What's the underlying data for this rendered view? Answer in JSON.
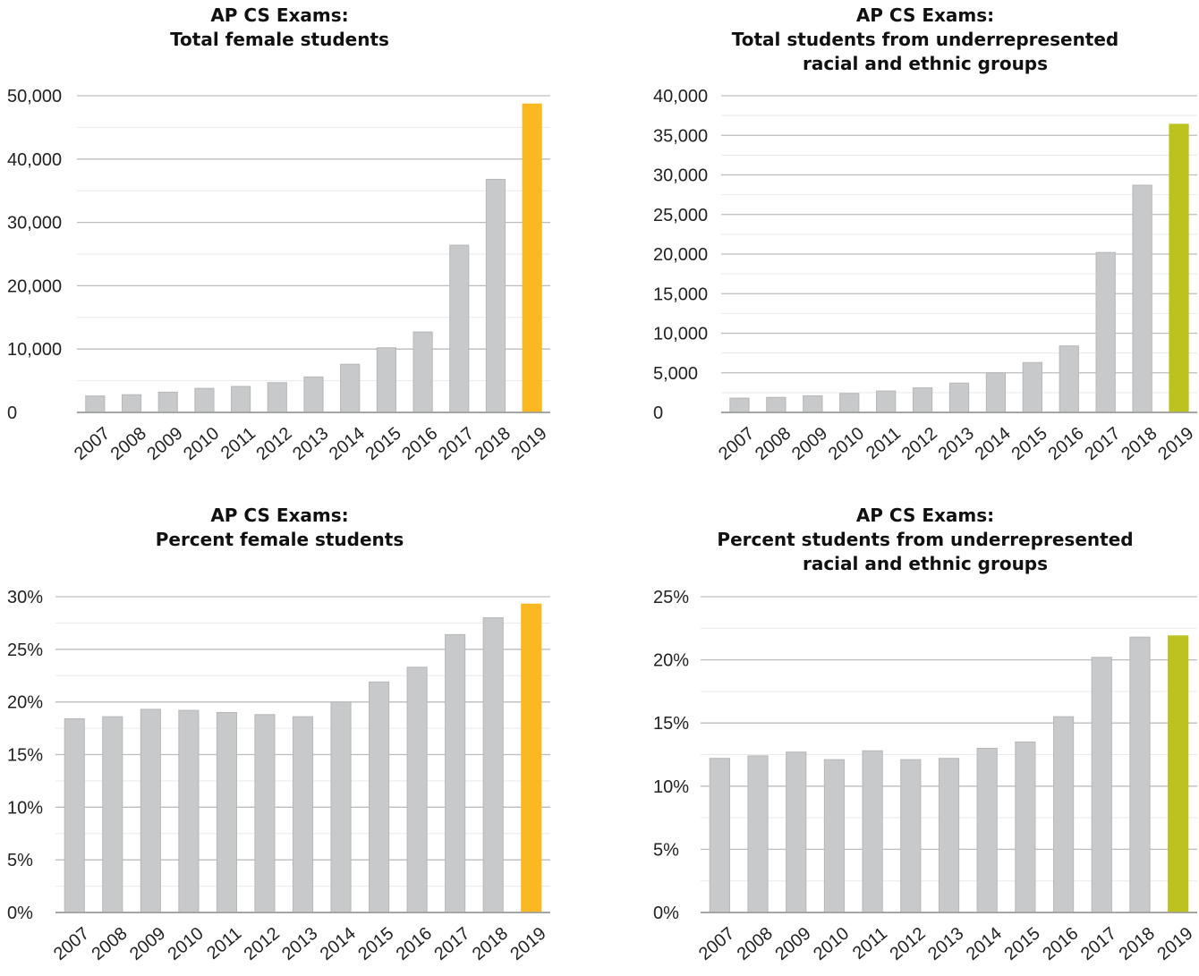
{
  "colors": {
    "bar": "#c7c9cb",
    "bar_stroke": "#b5b7b9",
    "female_highlight": "#fbb820",
    "urg_highlight": "#bcc31f",
    "grid": "#bdbdbd",
    "minor_grid": "#e9e9e9"
  },
  "chart_data": [
    {
      "type": "bar",
      "title_lines": [
        "AP CS Exams:",
        "Total female students"
      ],
      "categories": [
        "2007",
        "2008",
        "2009",
        "2010",
        "2011",
        "2012",
        "2013",
        "2014",
        "2015",
        "2016",
        "2017",
        "2018",
        "2019"
      ],
      "values": [
        2600,
        2800,
        3200,
        3800,
        4100,
        4700,
        5600,
        7600,
        10200,
        12700,
        26400,
        36800,
        48700
      ],
      "ylim": [
        0,
        50000
      ],
      "y_ticks": [
        0,
        10000,
        20000,
        30000,
        40000,
        50000
      ],
      "y_tick_labels": [
        "0",
        "10,000",
        "20,000",
        "30,000",
        "40,000",
        "50,000"
      ],
      "grid": true,
      "highlight_index": 12,
      "highlight_color": "female_highlight",
      "xlabel": "",
      "ylabel": ""
    },
    {
      "type": "bar",
      "title_lines": [
        "AP CS Exams:",
        "Total students from underrepresented",
        "racial and ethnic groups"
      ],
      "categories": [
        "2007",
        "2008",
        "2009",
        "2010",
        "2011",
        "2012",
        "2013",
        "2014",
        "2015",
        "2016",
        "2017",
        "2018",
        "2019"
      ],
      "values": [
        1800,
        1900,
        2100,
        2400,
        2700,
        3100,
        3700,
        5000,
        6300,
        8400,
        20200,
        28700,
        36400
      ],
      "ylim": [
        0,
        40000
      ],
      "y_ticks": [
        0,
        5000,
        10000,
        15000,
        20000,
        25000,
        30000,
        35000,
        40000
      ],
      "y_tick_labels": [
        "0",
        "5,000",
        "10,000",
        "15,000",
        "20,000",
        "25,000",
        "30,000",
        "35,000",
        "40,000"
      ],
      "grid": true,
      "highlight_index": 12,
      "highlight_color": "urg_highlight",
      "xlabel": "",
      "ylabel": ""
    },
    {
      "type": "bar",
      "title_lines": [
        "AP CS Exams:",
        "Percent female students"
      ],
      "categories": [
        "2007",
        "2008",
        "2009",
        "2010",
        "2011",
        "2012",
        "2013",
        "2014",
        "2015",
        "2016",
        "2017",
        "2018",
        "2019"
      ],
      "values": [
        18.4,
        18.6,
        19.3,
        19.2,
        19.0,
        18.8,
        18.6,
        20.0,
        21.9,
        23.3,
        26.4,
        28.0,
        29.3
      ],
      "ylim": [
        0,
        30
      ],
      "y_ticks": [
        0,
        5,
        10,
        15,
        20,
        25,
        30
      ],
      "y_tick_labels": [
        "0%",
        "5%",
        "10%",
        "15%",
        "20%",
        "25%",
        "30%"
      ],
      "grid": true,
      "highlight_index": 12,
      "highlight_color": "female_highlight",
      "xlabel": "",
      "ylabel": ""
    },
    {
      "type": "bar",
      "title_lines": [
        "AP CS Exams:",
        "Percent students from underrepresented",
        "racial and ethnic groups"
      ],
      "categories": [
        "2007",
        "2008",
        "2009",
        "2010",
        "2011",
        "2012",
        "2013",
        "2014",
        "2015",
        "2016",
        "2017",
        "2018",
        "2019"
      ],
      "values": [
        12.2,
        12.4,
        12.7,
        12.1,
        12.8,
        12.1,
        12.2,
        13.0,
        13.5,
        15.5,
        20.2,
        21.8,
        21.9
      ],
      "ylim": [
        0,
        25
      ],
      "y_ticks": [
        0,
        5,
        10,
        15,
        20,
        25
      ],
      "y_tick_labels": [
        "0%",
        "5%",
        "10%",
        "15%",
        "20%",
        "25%"
      ],
      "grid": true,
      "highlight_index": 12,
      "highlight_color": "urg_highlight",
      "xlabel": "",
      "ylabel": ""
    }
  ]
}
